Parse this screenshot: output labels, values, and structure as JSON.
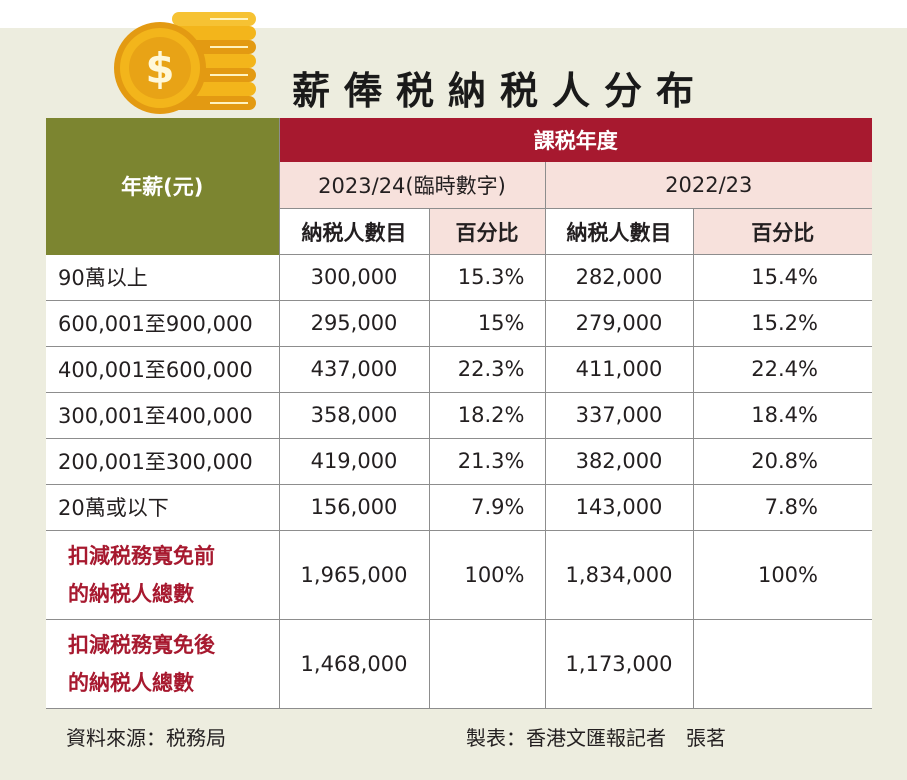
{
  "title": "薪俸税納税人分布",
  "table": {
    "year_header": "年薪(元)",
    "tax_year_header": "課税年度",
    "periods": [
      "2023/24(臨時數字)",
      "2022/23"
    ],
    "col_count": "納税人數目",
    "col_pct": "百分比",
    "rows": [
      {
        "label": "90萬以上",
        "c1": "300,000",
        "p1": "15.3%",
        "c2": "282,000",
        "p2": "15.4%"
      },
      {
        "label": "600,001至900,000",
        "c1": "295,000",
        "p1": "15%",
        "c2": "279,000",
        "p2": "15.2%"
      },
      {
        "label": "400,001至600,000",
        "c1": "437,000",
        "p1": "22.3%",
        "c2": "411,000",
        "p2": "22.4%"
      },
      {
        "label": "300,001至400,000",
        "c1": "358,000",
        "p1": "18.2%",
        "c2": "337,000",
        "p2": "18.4%"
      },
      {
        "label": "200,001至300,000",
        "c1": "419,000",
        "p1": "21.3%",
        "c2": "382,000",
        "p2": "20.8%"
      },
      {
        "label": "20萬或以下",
        "c1": "156,000",
        "p1": "7.9%",
        "c2": "143,000",
        "p2": "7.8%"
      }
    ],
    "totals": [
      {
        "label_line1": "扣減税務寬免前",
        "label_line2": "的納税人總數",
        "c1": "1,965,000",
        "p1": "100%",
        "c2": "1,834,000",
        "p2": "100%"
      },
      {
        "label_line1": "扣減税務寬免後",
        "label_line2": "的納税人總數",
        "c1": "1,468,000",
        "p1": "",
        "c2": "1,173,000",
        "p2": ""
      }
    ]
  },
  "footer": {
    "source": "資料來源：税務局",
    "credit": "製表：香港文匯報記者　張茗"
  },
  "colors": {
    "header_green": "#7c8530",
    "header_red": "#a7192f",
    "pink": "#f7e1dc",
    "panel": "#ededdf",
    "coin_gold": "#f3b51b"
  },
  "icons": {
    "coins": "gold-coins-icon"
  }
}
